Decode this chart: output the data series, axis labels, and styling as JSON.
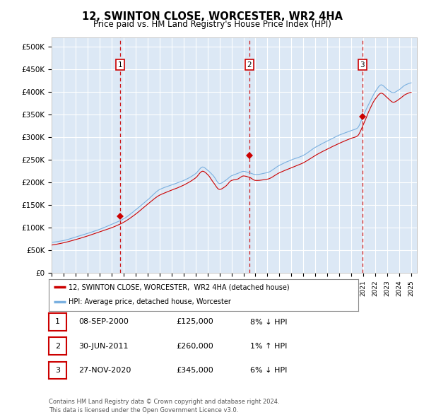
{
  "title": "12, SWINTON CLOSE, WORCESTER, WR2 4HA",
  "subtitle": "Price paid vs. HM Land Registry's House Price Index (HPI)",
  "plot_bg_color": "#dce8f5",
  "ylabel_ticks": [
    "£0",
    "£50K",
    "£100K",
    "£150K",
    "£200K",
    "£250K",
    "£300K",
    "£350K",
    "£400K",
    "£450K",
    "£500K"
  ],
  "ytick_values": [
    0,
    50000,
    100000,
    150000,
    200000,
    250000,
    300000,
    350000,
    400000,
    450000,
    500000
  ],
  "ylim": [
    0,
    520000
  ],
  "xlim_start": 1995.0,
  "xlim_end": 2025.5,
  "hpi_color": "#7ab0e0",
  "price_color": "#cc0000",
  "transactions": [
    {
      "date": 2000.7,
      "price": 125000,
      "label": "1"
    },
    {
      "date": 2011.5,
      "price": 260000,
      "label": "2"
    },
    {
      "date": 2020.92,
      "price": 345000,
      "label": "3"
    }
  ],
  "legend_line1": "12, SWINTON CLOSE, WORCESTER,  WR2 4HA (detached house)",
  "legend_line2": "HPI: Average price, detached house, Worcester",
  "table_rows": [
    {
      "num": "1",
      "date": "08-SEP-2000",
      "price": "£125,000",
      "pct": "8% ↓ HPI"
    },
    {
      "num": "2",
      "date": "30-JUN-2011",
      "price": "£260,000",
      "pct": "1% ↑ HPI"
    },
    {
      "num": "3",
      "date": "27-NOV-2020",
      "price": "£345,000",
      "pct": "6% ↓ HPI"
    }
  ],
  "footer": "Contains HM Land Registry data © Crown copyright and database right 2024.\nThis data is licensed under the Open Government Licence v3.0."
}
